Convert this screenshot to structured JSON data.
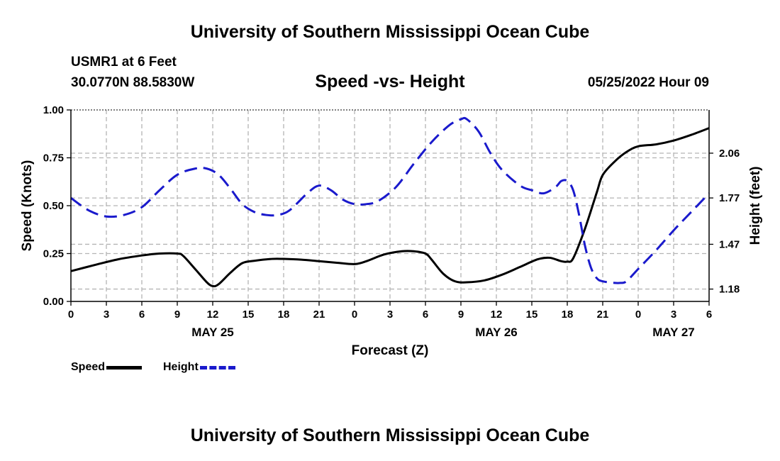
{
  "header": {
    "title": "University of Southern Mississippi Ocean Cube",
    "station": "USMR1 at 6 Feet",
    "coords": "30.0770N  88.5830W",
    "subtitle": "Speed -vs- Height",
    "datetime": "05/25/2022 Hour 09"
  },
  "footer": {
    "title": "University of Southern Mississippi Ocean Cube"
  },
  "legend": {
    "speed_label": "Speed",
    "height_label": "Height"
  },
  "colors": {
    "speed": "#000000",
    "height": "#1a1acc",
    "grid": "#b4b4b4"
  },
  "chart_data": {
    "type": "line",
    "xlabel": "Forecast (Z)",
    "ylabel": "Speed (Knots)",
    "y2label": "Height (feet)",
    "xlim": [
      0,
      54
    ],
    "x_ticks": [
      0,
      3,
      6,
      9,
      12,
      15,
      18,
      21,
      24,
      27,
      30,
      33,
      36,
      39,
      42,
      45,
      48,
      51,
      54
    ],
    "x_tick_labels": [
      "0",
      "3",
      "6",
      "9",
      "12",
      "15",
      "18",
      "21",
      "0",
      "3",
      "6",
      "9",
      "12",
      "15",
      "18",
      "21",
      "0",
      "3",
      "6"
    ],
    "date_labels": [
      {
        "hour": 12,
        "label": "MAY 25"
      },
      {
        "hour": 36,
        "label": "MAY 26"
      },
      {
        "hour": 51,
        "label": "MAY 27"
      }
    ],
    "ylim": [
      0,
      1.0
    ],
    "y_ticks": [
      0,
      0.25,
      0.5,
      0.75,
      1.0
    ],
    "y_tick_labels": [
      "0.00",
      "0.25",
      "0.50",
      "0.75",
      "1.00"
    ],
    "y2lim": [
      1.1,
      2.34
    ],
    "y2_ticks": [
      1.18,
      1.47,
      1.77,
      2.06
    ],
    "y2_tick_labels": [
      "1.18",
      "1.47",
      "1.77",
      "2.06"
    ],
    "grid": true,
    "series": [
      {
        "name": "Speed",
        "axis": "left",
        "x": [
          0,
          2,
          4,
          6,
          7.5,
          9,
          9.5,
          10.5,
          11.5,
          12,
          12.5,
          13.5,
          14.5,
          15.5,
          17,
          18,
          19.5,
          21,
          22.5,
          24,
          25,
          26.5,
          28,
          29,
          30,
          30.5,
          31.5,
          32.5,
          33.5,
          35,
          36.5,
          38,
          39.5,
          40.5,
          41.5,
          42,
          42.5,
          43.5,
          44.5,
          45,
          46,
          47,
          48,
          49.5,
          51,
          52.5,
          54
        ],
        "values": [
          0.158,
          0.19,
          0.22,
          0.24,
          0.25,
          0.25,
          0.238,
          0.17,
          0.1,
          0.08,
          0.09,
          0.15,
          0.2,
          0.212,
          0.222,
          0.222,
          0.218,
          0.21,
          0.202,
          0.195,
          0.21,
          0.245,
          0.262,
          0.262,
          0.25,
          0.22,
          0.145,
          0.105,
          0.1,
          0.11,
          0.14,
          0.18,
          0.22,
          0.228,
          0.21,
          0.208,
          0.225,
          0.38,
          0.57,
          0.66,
          0.73,
          0.78,
          0.81,
          0.82,
          0.84,
          0.87,
          0.905
        ]
      },
      {
        "name": "Height",
        "axis": "right",
        "x": [
          0,
          1.5,
          3,
          4.5,
          6,
          7.5,
          9,
          10.5,
          11.5,
          12.5,
          13.5,
          14.5,
          15.5,
          16.5,
          17.5,
          18.5,
          20,
          21,
          22,
          23,
          24,
          25,
          26,
          27.5,
          29,
          30.5,
          32,
          33,
          33.5,
          34.5,
          35.5,
          36.5,
          38,
          39,
          40,
          41,
          41.5,
          42,
          42.5,
          43,
          43.5,
          44,
          44.5,
          45,
          46,
          46.5,
          47,
          48,
          49.5,
          51,
          52.5,
          54
        ],
        "values": [
          1.77,
          1.69,
          1.65,
          1.66,
          1.71,
          1.82,
          1.92,
          1.96,
          1.96,
          1.92,
          1.83,
          1.73,
          1.68,
          1.66,
          1.66,
          1.69,
          1.8,
          1.85,
          1.82,
          1.76,
          1.73,
          1.73,
          1.75,
          1.84,
          1.99,
          2.13,
          2.24,
          2.28,
          2.28,
          2.2,
          2.06,
          1.95,
          1.85,
          1.82,
          1.8,
          1.84,
          1.88,
          1.88,
          1.82,
          1.66,
          1.46,
          1.32,
          1.25,
          1.23,
          1.22,
          1.22,
          1.23,
          1.31,
          1.43,
          1.56,
          1.68,
          1.8
        ]
      }
    ]
  }
}
